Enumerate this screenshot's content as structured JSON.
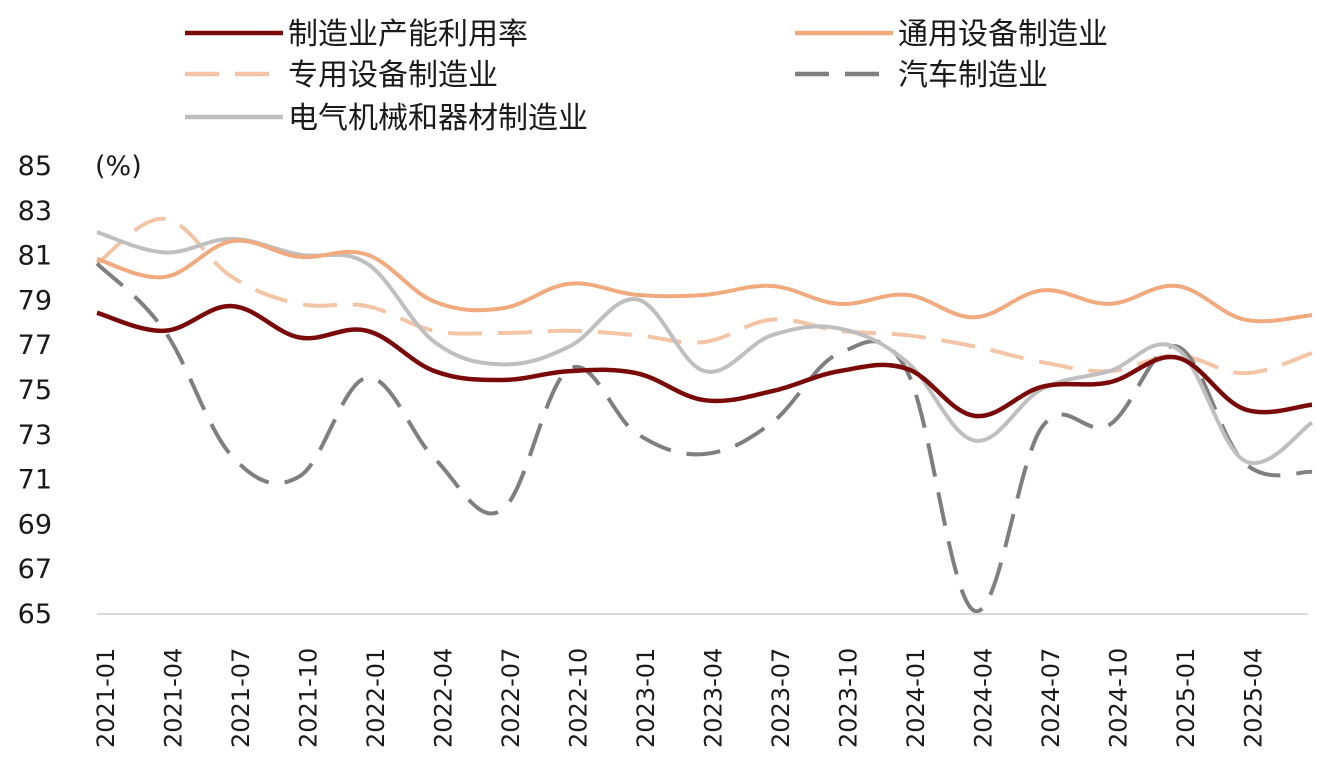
{
  "chart_data": {
    "type": "line",
    "title": "",
    "ylabel": "(%)",
    "xlabel": "",
    "ylim": [
      65,
      85
    ],
    "y_ticks": [
      "85",
      "83",
      "81",
      "79",
      "77",
      "75",
      "73",
      "71",
      "69",
      "67",
      "65"
    ],
    "x_tick_labels": [
      "2021-01",
      "2021-04",
      "2021-07",
      "2021-10",
      "2022-01",
      "2022-04",
      "2022-07",
      "2022-10",
      "2023-01",
      "2023-04",
      "2023-07",
      "2023-10",
      "2024-01",
      "2024-04",
      "2024-07",
      "2024-10",
      "2025-01",
      "2025-04"
    ],
    "legend_position": "top",
    "series": [
      {
        "name": "制造业产能利用率",
        "color": "#7a0a0a",
        "dash": "solid",
        "values": [
          78.4,
          77.6,
          78.7,
          77.3,
          77.6,
          75.8,
          75.4,
          75.8,
          75.7,
          74.5,
          74.9,
          75.8,
          75.9,
          73.8,
          75.1,
          75.3,
          76.4,
          74.1,
          74.3
        ]
      },
      {
        "name": "通用设备制造业",
        "color": "#f0aa7e",
        "dash": "solid",
        "values": [
          80.8,
          80.0,
          81.6,
          80.9,
          81.0,
          78.9,
          78.6,
          79.7,
          79.2,
          79.2,
          79.6,
          78.8,
          79.2,
          78.2,
          79.4,
          78.8,
          79.6,
          78.1,
          78.3
        ]
      },
      {
        "name": "专用设备制造业",
        "color": "#f4c4a6",
        "dash": "dashed",
        "values": [
          80.6,
          82.6,
          80.0,
          78.8,
          78.7,
          77.6,
          77.5,
          77.6,
          77.4,
          77.1,
          78.1,
          77.6,
          77.4,
          76.9,
          76.2,
          75.8,
          76.5,
          75.7,
          76.6
        ]
      },
      {
        "name": "汽车制造业",
        "color": "#7f7f7f",
        "dash": "dashed",
        "values": [
          80.6,
          77.6,
          72.0,
          71.1,
          75.5,
          71.9,
          69.6,
          75.9,
          73.0,
          72.1,
          73.5,
          76.6,
          75.8,
          65.1,
          73.3,
          73.4,
          76.9,
          71.7,
          71.3
        ]
      },
      {
        "name": "电气机械和器材制造业",
        "color": "#bfbfbf",
        "dash": "solid",
        "values": [
          82.0,
          81.1,
          81.7,
          81.0,
          80.6,
          77.1,
          76.1,
          76.9,
          79.0,
          75.8,
          77.4,
          77.7,
          76.2,
          72.7,
          75.0,
          75.8,
          76.8,
          71.8,
          73.5
        ]
      }
    ]
  }
}
